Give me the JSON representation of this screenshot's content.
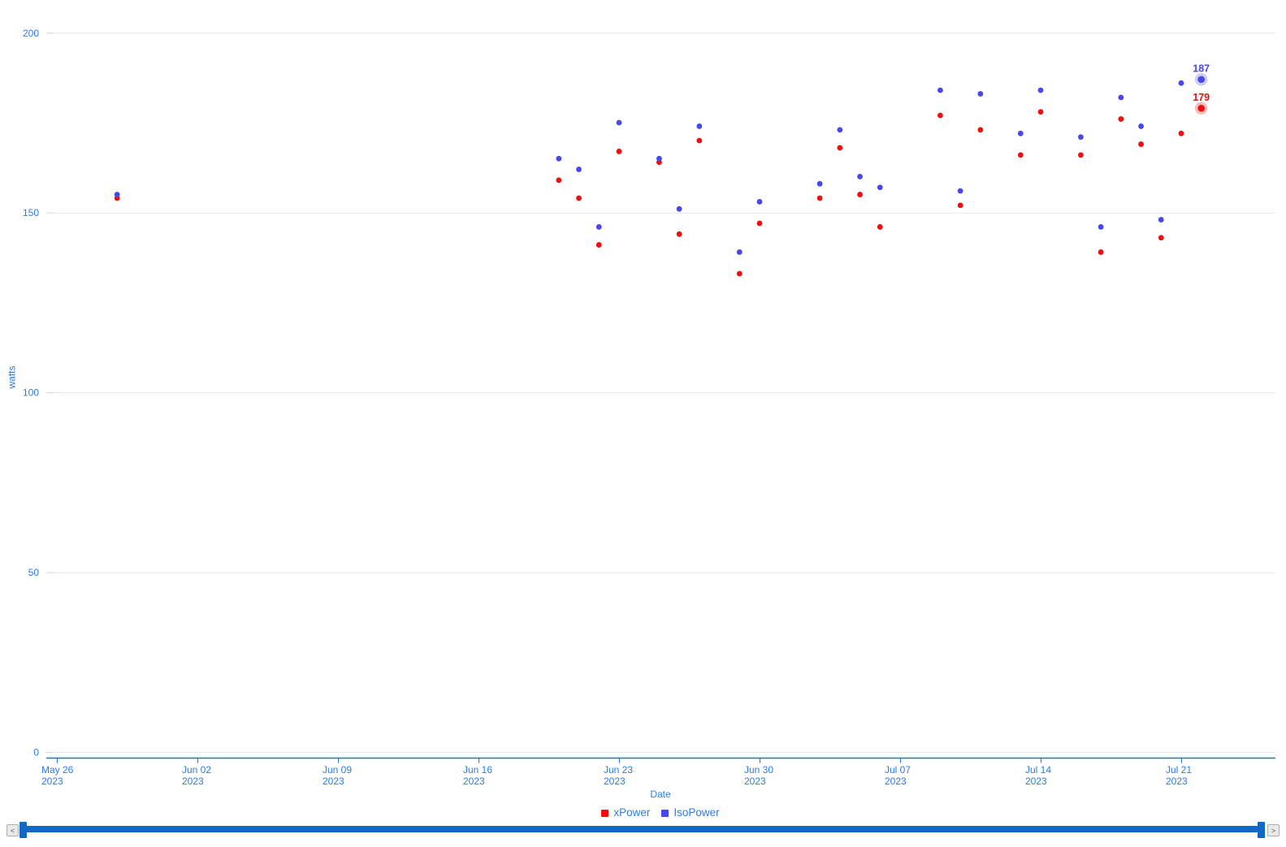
{
  "chart_data": {
    "type": "scatter",
    "title": "",
    "xlabel": "Date",
    "ylabel": "watts",
    "grid": true,
    "legend_position": "bottom-center",
    "x_axis": {
      "note": "day = days since May 26 2023",
      "tick_labels": [
        {
          "line1": "May 26",
          "line2": "2023",
          "day": 0
        },
        {
          "line1": "Jun 02",
          "line2": "2023",
          "day": 7
        },
        {
          "line1": "Jun 09",
          "line2": "2023",
          "day": 14
        },
        {
          "line1": "Jun 16",
          "line2": "2023",
          "day": 21
        },
        {
          "line1": "Jun 23",
          "line2": "2023",
          "day": 28
        },
        {
          "line1": "Jun 30",
          "line2": "2023",
          "day": 35
        },
        {
          "line1": "Jul 07",
          "line2": "2023",
          "day": 42
        },
        {
          "line1": "Jul 14",
          "line2": "2023",
          "day": 49
        },
        {
          "line1": "Jul 21",
          "line2": "2023",
          "day": 56
        }
      ]
    },
    "y_axis": {
      "ticks": [
        0,
        50,
        100,
        150,
        200
      ],
      "ylim": [
        0,
        211
      ]
    },
    "series": [
      {
        "name": "xPower",
        "color": "#f00d0d",
        "points": [
          {
            "date": "May 29 2023",
            "day": 3,
            "value": 154
          },
          {
            "date": "Jun 20 2023",
            "day": 25,
            "value": 159
          },
          {
            "date": "Jun 21 2023",
            "day": 26,
            "value": 154
          },
          {
            "date": "Jun 22 2023",
            "day": 27,
            "value": 141
          },
          {
            "date": "Jun 23 2023",
            "day": 28,
            "value": 167
          },
          {
            "date": "Jun 25 2023",
            "day": 30,
            "value": 164
          },
          {
            "date": "Jun 26 2023",
            "day": 31,
            "value": 144
          },
          {
            "date": "Jun 27 2023",
            "day": 32,
            "value": 170
          },
          {
            "date": "Jun 29 2023",
            "day": 34,
            "value": 133
          },
          {
            "date": "Jun 30 2023",
            "day": 35,
            "value": 147
          },
          {
            "date": "Jul 03 2023",
            "day": 38,
            "value": 154
          },
          {
            "date": "Jul 04 2023",
            "day": 39,
            "value": 168
          },
          {
            "date": "Jul 05 2023",
            "day": 40,
            "value": 155
          },
          {
            "date": "Jul 06 2023",
            "day": 41,
            "value": 146
          },
          {
            "date": "Jul 09 2023",
            "day": 44,
            "value": 177
          },
          {
            "date": "Jul 10 2023",
            "day": 45,
            "value": 152
          },
          {
            "date": "Jul 11 2023",
            "day": 46,
            "value": 173
          },
          {
            "date": "Jul 13 2023",
            "day": 48,
            "value": 166
          },
          {
            "date": "Jul 14 2023",
            "day": 49,
            "value": 178
          },
          {
            "date": "Jul 16 2023",
            "day": 51,
            "value": 166
          },
          {
            "date": "Jul 17 2023",
            "day": 52,
            "value": 139
          },
          {
            "date": "Jul 18 2023",
            "day": 53,
            "value": 176
          },
          {
            "date": "Jul 19 2023",
            "day": 54,
            "value": 169
          },
          {
            "date": "Jul 20 2023",
            "day": 55,
            "value": 143
          },
          {
            "date": "Jul 21 2023",
            "day": 56,
            "value": 172
          },
          {
            "date": "Jul 22 2023",
            "day": 57,
            "value": 179,
            "labeled": true,
            "label": "179"
          }
        ]
      },
      {
        "name": "IsoPower",
        "color": "#4847e9",
        "points": [
          {
            "date": "May 29 2023",
            "day": 3,
            "value": 155
          },
          {
            "date": "Jun 20 2023",
            "day": 25,
            "value": 165
          },
          {
            "date": "Jun 21 2023",
            "day": 26,
            "value": 162
          },
          {
            "date": "Jun 22 2023",
            "day": 27,
            "value": 146
          },
          {
            "date": "Jun 23 2023",
            "day": 28,
            "value": 175
          },
          {
            "date": "Jun 25 2023",
            "day": 30,
            "value": 165
          },
          {
            "date": "Jun 26 2023",
            "day": 31,
            "value": 151
          },
          {
            "date": "Jun 27 2023",
            "day": 32,
            "value": 174
          },
          {
            "date": "Jun 29 2023",
            "day": 34,
            "value": 139
          },
          {
            "date": "Jun 30 2023",
            "day": 35,
            "value": 153
          },
          {
            "date": "Jul 03 2023",
            "day": 38,
            "value": 158
          },
          {
            "date": "Jul 04 2023",
            "day": 39,
            "value": 173
          },
          {
            "date": "Jul 05 2023",
            "day": 40,
            "value": 160
          },
          {
            "date": "Jul 06 2023",
            "day": 41,
            "value": 157
          },
          {
            "date": "Jul 09 2023",
            "day": 44,
            "value": 184
          },
          {
            "date": "Jul 10 2023",
            "day": 45,
            "value": 156
          },
          {
            "date": "Jul 11 2023",
            "day": 46,
            "value": 183
          },
          {
            "date": "Jul 13 2023",
            "day": 48,
            "value": 172
          },
          {
            "date": "Jul 14 2023",
            "day": 49,
            "value": 184
          },
          {
            "date": "Jul 16 2023",
            "day": 51,
            "value": 171
          },
          {
            "date": "Jul 17 2023",
            "day": 52,
            "value": 146
          },
          {
            "date": "Jul 18 2023",
            "day": 53,
            "value": 182
          },
          {
            "date": "Jul 19 2023",
            "day": 54,
            "value": 174
          },
          {
            "date": "Jul 20 2023",
            "day": 55,
            "value": 148
          },
          {
            "date": "Jul 21 2023",
            "day": 56,
            "value": 186
          },
          {
            "date": "Jul 22 2023",
            "day": 57,
            "value": 187,
            "labeled": true,
            "label": "187"
          }
        ]
      }
    ]
  },
  "colors": {
    "axis_text": "#2e7ce2",
    "axis_line": "#1d72d4",
    "gridline": "#e7e7e7",
    "grid_tick": "#d6d6d6",
    "scrollbar": "#1269c4"
  },
  "scrollbar": {
    "left_arrow": "<",
    "right_arrow": ">"
  }
}
